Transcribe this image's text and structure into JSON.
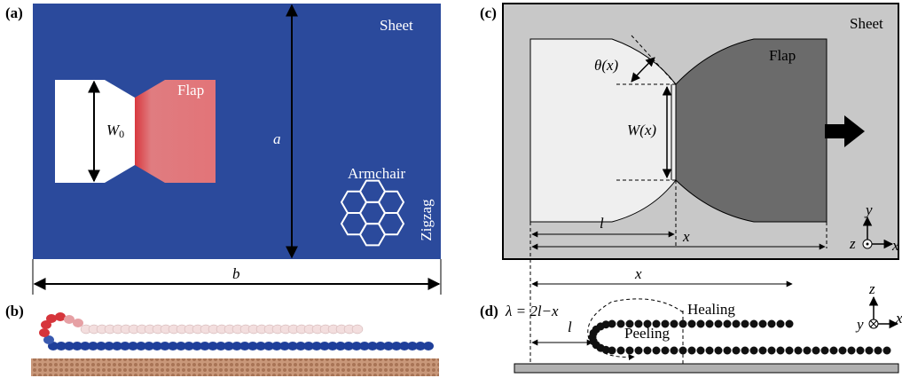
{
  "panels": {
    "a": {
      "label": "(a)",
      "sheet": "Sheet",
      "flap": "Flap",
      "width": "W",
      "width_sub": "0",
      "height": "a",
      "length": "b",
      "armchair": "Armchair",
      "zigzag": "Zigzag"
    },
    "b": {
      "label": "(b)"
    },
    "c": {
      "label": "(c)",
      "sheet": "Sheet",
      "flap": "Flap",
      "angle": "θ(x)",
      "width": "W(x)",
      "l": "l",
      "x": "x",
      "axis_y": "y",
      "axis_z": "z",
      "axis_x": "x"
    },
    "d": {
      "label": "(d)",
      "x": "x",
      "lambda": "λ = 2l−x",
      "l": "l",
      "healing": "Healing",
      "peeling": "Peeling",
      "axis_z": "z",
      "axis_y": "y",
      "axis_x": "x"
    }
  }
}
